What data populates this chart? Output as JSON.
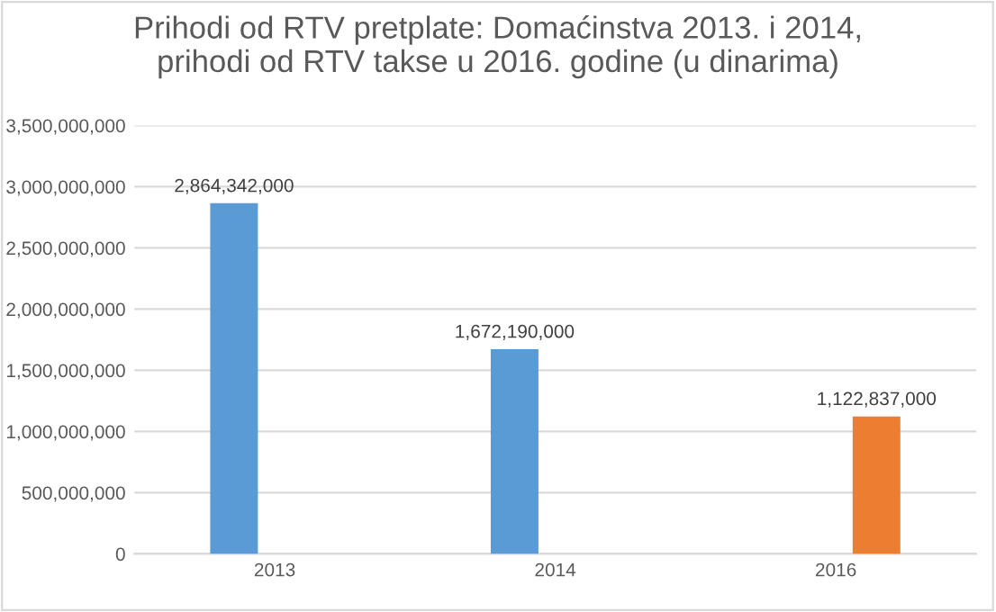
{
  "chart_data": {
    "type": "bar",
    "title": "Prihodi od RTV pretplate: Domaćinstva 2013. i 2014,\nprihodi od RTV takse u 2016. godine (u dinarima)",
    "categories": [
      "2013",
      "2014",
      "2016"
    ],
    "series": [
      {
        "color": "#5b9bd5",
        "values": [
          2864342000,
          1672190000,
          null
        ],
        "value_labels": [
          "2,864,342,000",
          "1,672,190,000",
          null
        ]
      },
      {
        "color": "#ed7d31",
        "values": [
          null,
          null,
          1122837000
        ],
        "value_labels": [
          null,
          null,
          "1,122,837,000"
        ]
      }
    ],
    "ylim": [
      0,
      3500000000
    ],
    "yticks": [
      {
        "value": 0,
        "label": "0"
      },
      {
        "value": 500000000,
        "label": "500,000,000"
      },
      {
        "value": 1000000000,
        "label": "1,000,000,000"
      },
      {
        "value": 1500000000,
        "label": "1,500,000,000"
      },
      {
        "value": 2000000000,
        "label": "2,000,000,000"
      },
      {
        "value": 2500000000,
        "label": "2,500,000,000"
      },
      {
        "value": 3000000000,
        "label": "3,000,000,000"
      },
      {
        "value": 3500000000,
        "label": "3,500,000,000"
      }
    ],
    "grid": "y"
  }
}
